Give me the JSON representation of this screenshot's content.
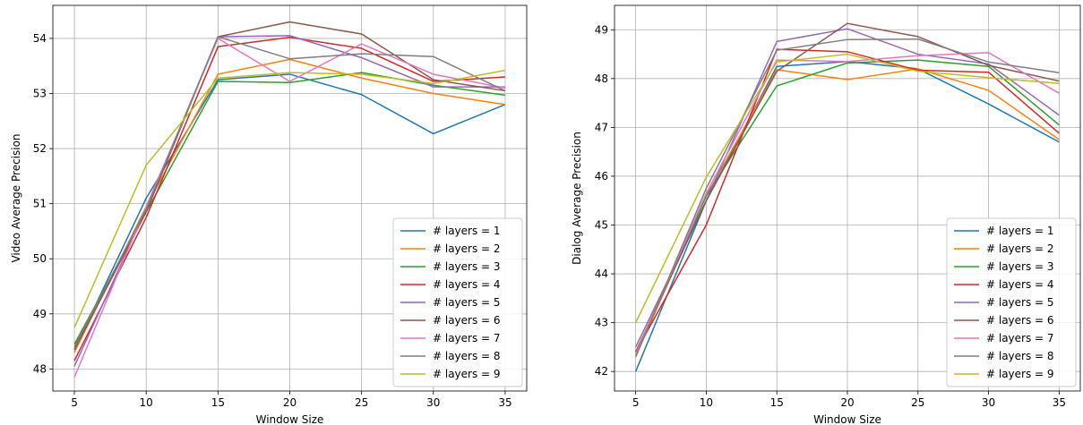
{
  "chart_data": [
    {
      "type": "line",
      "title": "",
      "xlabel": "Window Size",
      "ylabel": "Video Average Precision",
      "x": [
        5,
        10,
        15,
        20,
        25,
        30,
        35
      ],
      "xticks": [
        "5",
        "10",
        "15",
        "20",
        "25",
        "30",
        "35"
      ],
      "yticks": [
        "48",
        "49",
        "50",
        "51",
        "52",
        "53",
        "54"
      ],
      "xlim": [
        3.5,
        36.5
      ],
      "ylim": [
        47.6,
        54.6
      ],
      "grid": true,
      "legend_position": "lower-right",
      "series": [
        {
          "name": "# layers = 1",
          "color": "#1f77b4",
          "values": [
            48.35,
            51.1,
            53.25,
            53.35,
            52.98,
            52.27,
            52.8
          ]
        },
        {
          "name": "# layers = 2",
          "color": "#ff7f0e",
          "values": [
            48.3,
            50.95,
            53.35,
            53.62,
            53.28,
            53.0,
            52.8
          ]
        },
        {
          "name": "# layers = 3",
          "color": "#2ca02c",
          "values": [
            48.45,
            50.85,
            53.22,
            53.2,
            53.38,
            53.15,
            52.97
          ]
        },
        {
          "name": "# layers = 4",
          "color": "#d62728",
          "values": [
            48.15,
            50.75,
            53.85,
            54.02,
            53.82,
            53.22,
            53.3
          ]
        },
        {
          "name": "# layers = 5",
          "color": "#9467bd",
          "values": [
            48.05,
            50.9,
            54.03,
            54.05,
            53.65,
            53.12,
            53.12
          ]
        },
        {
          "name": "# layers = 6",
          "color": "#8c564b",
          "values": [
            48.35,
            50.85,
            54.03,
            54.3,
            54.08,
            53.25,
            53.05
          ]
        },
        {
          "name": "# layers = 7",
          "color": "#e377c2",
          "values": [
            47.85,
            50.95,
            54.0,
            53.22,
            53.9,
            53.35,
            53.1
          ]
        },
        {
          "name": "# layers = 8",
          "color": "#7f7f7f",
          "values": [
            48.4,
            50.9,
            54.03,
            53.63,
            53.72,
            53.67,
            53.05
          ]
        },
        {
          "name": "# layers = 9",
          "color": "#bcbd22",
          "values": [
            48.75,
            51.7,
            53.28,
            53.38,
            53.35,
            53.18,
            53.42
          ]
        }
      ]
    },
    {
      "type": "line",
      "title": "",
      "xlabel": "Window Size",
      "ylabel": "Dialog Average Precision",
      "x": [
        5,
        10,
        15,
        20,
        25,
        30,
        35
      ],
      "xticks": [
        "5",
        "10",
        "15",
        "20",
        "25",
        "30",
        "35"
      ],
      "yticks": [
        "42",
        "43",
        "44",
        "45",
        "46",
        "47",
        "48",
        "49"
      ],
      "xlim": [
        3.5,
        36.5
      ],
      "ylim": [
        41.6,
        49.5
      ],
      "grid": true,
      "legend_position": "lower-right",
      "series": [
        {
          "name": "# layers = 1",
          "color": "#1f77b4",
          "values": [
            42.0,
            45.5,
            48.25,
            48.35,
            48.2,
            47.48,
            46.7
          ]
        },
        {
          "name": "# layers = 2",
          "color": "#ff7f0e",
          "values": [
            42.3,
            45.6,
            48.18,
            47.98,
            48.2,
            47.76,
            46.75
          ]
        },
        {
          "name": "# layers = 3",
          "color": "#2ca02c",
          "values": [
            42.35,
            45.6,
            47.85,
            48.32,
            48.38,
            48.25,
            47.05
          ]
        },
        {
          "name": "# layers = 4",
          "color": "#d62728",
          "values": [
            42.4,
            45.0,
            48.6,
            48.55,
            48.17,
            48.13,
            46.88
          ]
        },
        {
          "name": "# layers = 5",
          "color": "#9467bd",
          "values": [
            42.5,
            45.5,
            48.76,
            49.02,
            48.5,
            48.3,
            47.25
          ]
        },
        {
          "name": "# layers = 6",
          "color": "#8c564b",
          "values": [
            42.4,
            45.5,
            48.15,
            49.13,
            48.86,
            48.27,
            47.95
          ]
        },
        {
          "name": "# layers = 7",
          "color": "#e377c2",
          "values": [
            42.35,
            45.65,
            48.38,
            48.35,
            48.47,
            48.53,
            47.7
          ]
        },
        {
          "name": "# layers = 8",
          "color": "#7f7f7f",
          "values": [
            42.3,
            45.75,
            48.58,
            48.8,
            48.81,
            48.34,
            48.12
          ]
        },
        {
          "name": "# layers = 9",
          "color": "#bcbd22",
          "values": [
            43.0,
            45.98,
            48.34,
            48.5,
            48.15,
            48.02,
            47.9
          ]
        }
      ]
    }
  ]
}
